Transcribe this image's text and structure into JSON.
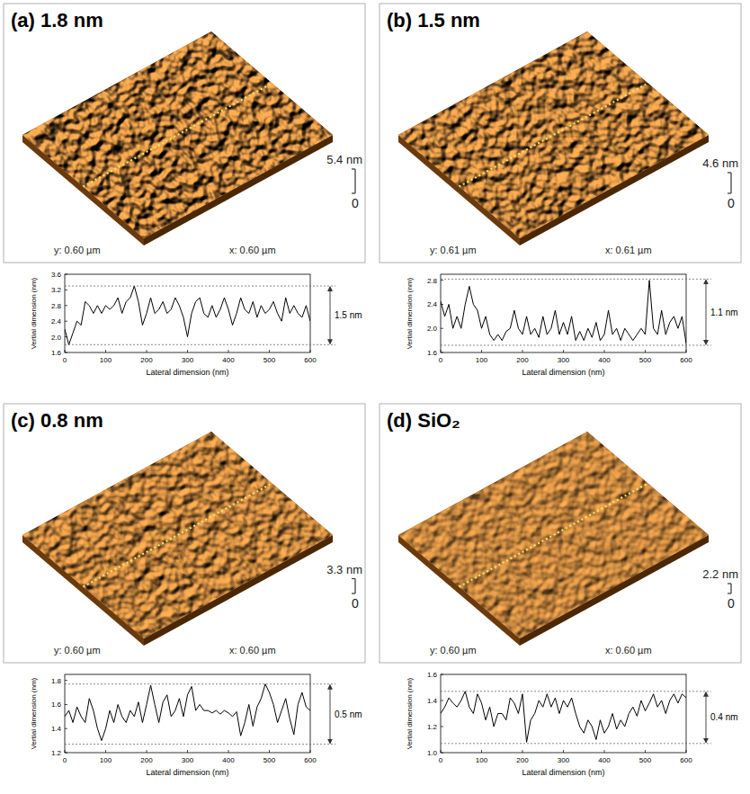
{
  "chart_data": [
    {
      "type": "line",
      "title": "(a) 1.8 nm",
      "surface": {
        "x_label": "x: 0.60 µm",
        "y_label": "y: 0.60 µm",
        "zticks": [
          0,
          {
            "value": 5.4,
            "label": "5.4 nm"
          }
        ]
      },
      "x_label": "Lateral dimension (nm)",
      "y_label": "Vertial dimension (nm)",
      "xlim": [
        0,
        600
      ],
      "xticks": [
        0,
        100,
        200,
        300,
        400,
        500,
        600
      ],
      "ylim": [
        1.6,
        3.6
      ],
      "yticks": [
        1.6,
        {
          "value": 2,
          "label": "2.0"
        },
        2.4,
        2.8,
        3.2,
        3.6
      ],
      "x": [
        0,
        10,
        20,
        30,
        40,
        50,
        60,
        70,
        80,
        90,
        100,
        110,
        120,
        130,
        140,
        150,
        160,
        170,
        180,
        190,
        200,
        210,
        220,
        230,
        240,
        250,
        260,
        270,
        280,
        290,
        300,
        310,
        320,
        330,
        340,
        350,
        360,
        370,
        380,
        390,
        400,
        410,
        420,
        430,
        440,
        450,
        460,
        470,
        480,
        490,
        500,
        510,
        520,
        530,
        540,
        550,
        560,
        570,
        580,
        590,
        600
      ],
      "values": [
        2.2,
        1.8,
        2.1,
        2.4,
        2.3,
        2.9,
        2.8,
        2.6,
        2.8,
        2.6,
        2.8,
        2.7,
        2.8,
        3.0,
        2.6,
        2.9,
        3.0,
        3.3,
        2.9,
        2.3,
        2.6,
        3.0,
        2.6,
        2.7,
        2.9,
        2.6,
        2.7,
        3.0,
        2.8,
        2.5,
        2.0,
        2.6,
        2.9,
        3.0,
        2.6,
        2.5,
        2.8,
        2.5,
        2.7,
        3.0,
        2.7,
        2.3,
        2.6,
        3.0,
        2.7,
        2.6,
        2.9,
        2.5,
        2.8,
        2.6,
        2.7,
        2.9,
        2.6,
        2.4,
        3.0,
        2.6,
        2.8,
        2.6,
        2.5,
        2.8,
        2.4
      ],
      "color": "#000000",
      "annotation": {
        "text": "1.5 nm",
        "from": 1.8,
        "to": 3.3
      }
    },
    {
      "type": "line",
      "title": "(b) 1.5 nm",
      "surface": {
        "x_label": "x: 0.61 µm",
        "y_label": "y: 0.61 µm",
        "zticks": [
          0,
          {
            "value": 4.6,
            "label": "4.6 nm"
          }
        ]
      },
      "x_label": "Lateral dimension (nm)",
      "y_label": "Vertial dimension (nm)",
      "xlim": [
        0,
        600
      ],
      "xticks": [
        0,
        100,
        200,
        300,
        400,
        500,
        600
      ],
      "ylim": [
        1.6,
        2.9
      ],
      "yticks": [
        1.6,
        {
          "value": 2,
          "label": "2.0"
        },
        2.4,
        2.8
      ],
      "x": [
        0,
        10,
        20,
        30,
        40,
        50,
        60,
        70,
        80,
        90,
        100,
        110,
        120,
        130,
        140,
        150,
        160,
        170,
        180,
        190,
        200,
        210,
        220,
        230,
        240,
        250,
        260,
        270,
        280,
        290,
        300,
        310,
        320,
        330,
        340,
        350,
        360,
        370,
        380,
        390,
        400,
        410,
        420,
        430,
        440,
        450,
        460,
        470,
        480,
        490,
        500,
        510,
        520,
        530,
        540,
        550,
        560,
        570,
        580,
        590,
        600
      ],
      "values": [
        2.45,
        2.2,
        2.4,
        2.0,
        2.2,
        2.0,
        2.4,
        2.7,
        2.4,
        2.3,
        2.0,
        2.2,
        1.9,
        1.8,
        1.9,
        1.8,
        1.95,
        2.0,
        2.3,
        2.0,
        1.9,
        2.2,
        1.9,
        2.0,
        1.85,
        2.2,
        1.9,
        2.0,
        2.3,
        1.9,
        2.1,
        1.9,
        2.2,
        1.8,
        1.95,
        1.8,
        2.0,
        1.85,
        2.1,
        1.8,
        1.9,
        2.3,
        1.9,
        2.0,
        1.8,
        2.0,
        1.9,
        1.8,
        1.9,
        2.0,
        1.9,
        2.8,
        2.0,
        1.9,
        2.3,
        1.9,
        2.1,
        2.2,
        2.0,
        2.2,
        1.75
      ],
      "color": "#000000",
      "annotation": {
        "text": "1.1 nm",
        "from": 1.72,
        "to": 2.82
      }
    },
    {
      "type": "line",
      "title": "(c) 0.8 nm",
      "surface": {
        "x_label": "x: 0.60 µm",
        "y_label": "y: 0.60 µm",
        "zticks": [
          0,
          {
            "value": 3.3,
            "label": "3.3 nm"
          }
        ]
      },
      "x_label": "Lateral dimension (nm)",
      "y_label": "Vertial dimension (nm)",
      "xlim": [
        0,
        600
      ],
      "xticks": [
        0,
        100,
        200,
        300,
        400,
        500,
        600
      ],
      "ylim": [
        1.2,
        1.85
      ],
      "yticks": [
        1.2,
        1.4,
        1.6,
        1.8
      ],
      "x": [
        0,
        10,
        20,
        30,
        40,
        50,
        60,
        70,
        80,
        90,
        100,
        110,
        120,
        130,
        140,
        150,
        160,
        170,
        180,
        190,
        200,
        210,
        220,
        230,
        240,
        250,
        260,
        270,
        280,
        290,
        300,
        310,
        320,
        330,
        340,
        350,
        360,
        370,
        380,
        390,
        400,
        410,
        420,
        430,
        440,
        450,
        460,
        470,
        480,
        490,
        500,
        510,
        520,
        530,
        540,
        550,
        560,
        570,
        580,
        590,
        600
      ],
      "values": [
        1.5,
        1.55,
        1.45,
        1.58,
        1.5,
        1.45,
        1.65,
        1.55,
        1.4,
        1.3,
        1.4,
        1.55,
        1.45,
        1.6,
        1.5,
        1.45,
        1.55,
        1.5,
        1.62,
        1.45,
        1.6,
        1.76,
        1.6,
        1.45,
        1.62,
        1.68,
        1.5,
        1.55,
        1.65,
        1.5,
        1.68,
        1.75,
        1.55,
        1.6,
        1.55,
        1.55,
        1.53,
        1.55,
        1.52,
        1.55,
        1.53,
        1.5,
        1.54,
        1.34,
        1.45,
        1.6,
        1.42,
        1.58,
        1.65,
        1.77,
        1.7,
        1.6,
        1.45,
        1.55,
        1.65,
        1.48,
        1.35,
        1.6,
        1.7,
        1.58,
        1.55
      ],
      "color": "#000000",
      "annotation": {
        "text": "0.5 nm",
        "from": 1.27,
        "to": 1.77
      }
    },
    {
      "type": "line",
      "title": "(d) SiO₂",
      "surface": {
        "x_label": "x: 0.60 µm",
        "y_label": "y: 0.60 µm",
        "zticks": [
          0,
          {
            "value": 2.2,
            "label": "2.2 nm"
          }
        ]
      },
      "x_label": "Lateral dimension (nm)",
      "y_label": "Vertial dimension (nm)",
      "xlim": [
        0,
        600
      ],
      "xticks": [
        0,
        100,
        200,
        300,
        400,
        500,
        600
      ],
      "ylim": [
        1.0,
        1.6
      ],
      "yticks": [
        {
          "value": 1,
          "label": "1.0"
        },
        1.2,
        1.4,
        1.6
      ],
      "x": [
        0,
        10,
        20,
        30,
        40,
        50,
        60,
        70,
        80,
        90,
        100,
        110,
        120,
        130,
        140,
        150,
        160,
        170,
        180,
        190,
        200,
        210,
        220,
        230,
        240,
        250,
        260,
        270,
        280,
        290,
        300,
        310,
        320,
        330,
        340,
        350,
        360,
        370,
        380,
        390,
        400,
        410,
        420,
        430,
        440,
        450,
        460,
        470,
        480,
        490,
        500,
        510,
        520,
        530,
        540,
        550,
        560,
        570,
        580,
        590,
        600
      ],
      "values": [
        1.3,
        1.35,
        1.42,
        1.38,
        1.35,
        1.4,
        1.47,
        1.35,
        1.3,
        1.45,
        1.38,
        1.25,
        1.35,
        1.2,
        1.3,
        1.3,
        1.25,
        1.42,
        1.38,
        1.3,
        1.45,
        1.08,
        1.25,
        1.3,
        1.4,
        1.35,
        1.45,
        1.35,
        1.42,
        1.3,
        1.4,
        1.35,
        1.42,
        1.3,
        1.2,
        1.15,
        1.25,
        1.2,
        1.1,
        1.25,
        1.15,
        1.2,
        1.3,
        1.18,
        1.25,
        1.2,
        1.3,
        1.35,
        1.28,
        1.4,
        1.32,
        1.38,
        1.45,
        1.35,
        1.4,
        1.3,
        1.4,
        1.45,
        1.38,
        1.45,
        1.42
      ],
      "color": "#000000",
      "annotation": {
        "text": "0.4 nm",
        "from": 1.07,
        "to": 1.47
      }
    }
  ]
}
